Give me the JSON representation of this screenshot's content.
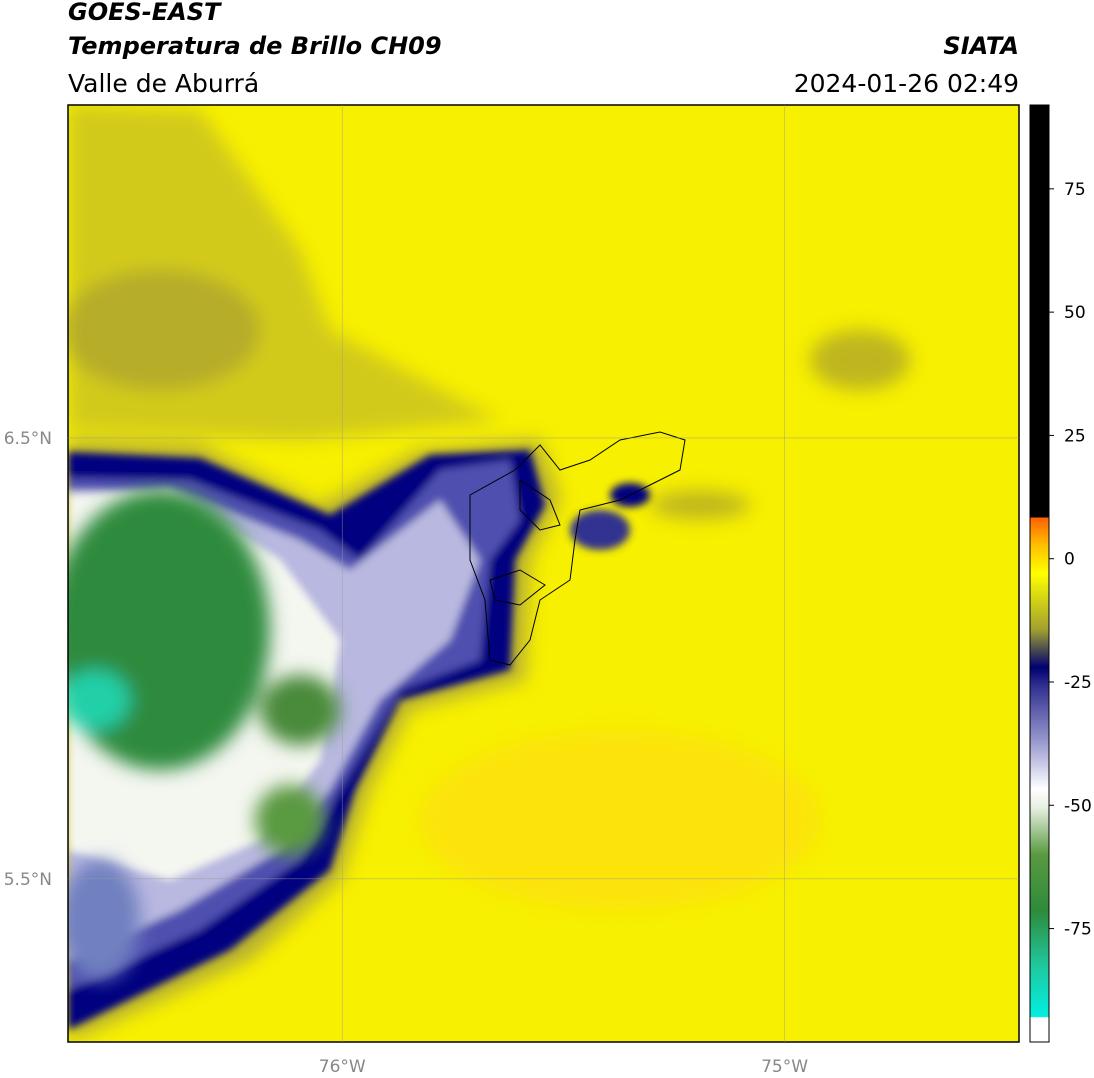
{
  "header": {
    "title": "GOES-EAST",
    "subtitle": "Temperatura de Brillo CH09",
    "region": "Valle de Aburrá",
    "source": "SIATA",
    "timestamp": "2024-01-26 02:49"
  },
  "map": {
    "xlim": [
      -76.62,
      -74.47
    ],
    "ylim": [
      5.13,
      7.255
    ],
    "xticks": [
      {
        "value": -76,
        "label": "76°W"
      },
      {
        "value": -75,
        "label": "75°W"
      }
    ],
    "yticks": [
      {
        "value": 6.5,
        "label": "6.5°N"
      },
      {
        "value": 5.5,
        "label": "5.5°N"
      }
    ],
    "grid": true
  },
  "colorbar": {
    "clim": [
      -98,
      92
    ],
    "ticks": [
      -75,
      -50,
      -25,
      0,
      25,
      50,
      75
    ]
  }
}
